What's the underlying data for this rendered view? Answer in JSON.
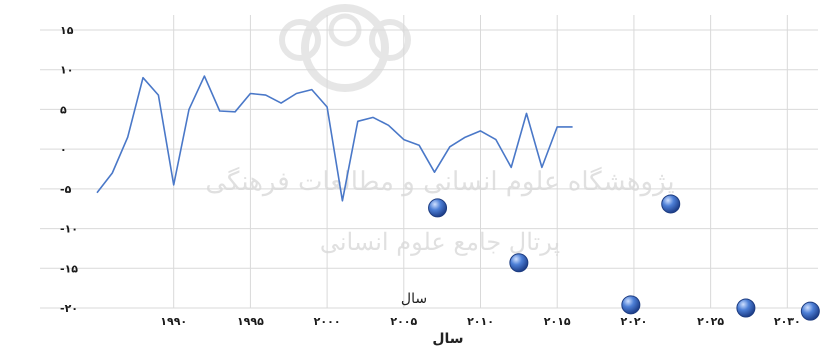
{
  "chart_data": {
    "type": "line",
    "title": "",
    "xlabel": "سال",
    "xlabel_top": "سال",
    "ylabel": "",
    "xlim": [
      1985,
      2032
    ],
    "ylim": [
      -20,
      15
    ],
    "grid": true,
    "y_ticks": [
      {
        "value": 15,
        "label": "۱۵"
      },
      {
        "value": 10,
        "label": "۱۰"
      },
      {
        "value": 5,
        "label": "۵"
      },
      {
        "value": 0,
        "label": "۰"
      },
      {
        "value": -5,
        "label": "-۵"
      },
      {
        "value": -10,
        "label": "-۱۰"
      },
      {
        "value": -15,
        "label": "-۱۵"
      },
      {
        "value": -20,
        "label": "-۲۰"
      }
    ],
    "x_ticks": [
      {
        "value": 1990,
        "label": "۱۹۹۰"
      },
      {
        "value": 1995,
        "label": "۱۹۹۵"
      },
      {
        "value": 2000,
        "label": "۲۰۰۰"
      },
      {
        "value": 2005,
        "label": "۲۰۰۵"
      },
      {
        "value": 2010,
        "label": "۲۰۱۰"
      },
      {
        "value": 2015,
        "label": "۲۰۱۵"
      },
      {
        "value": 2020,
        "label": "۲۰۲۰"
      },
      {
        "value": 2025,
        "label": "۲۰۲۵"
      },
      {
        "value": 2030,
        "label": "۲۰۳۰"
      }
    ],
    "series": [
      {
        "kind": "line",
        "color": "#4a78c8",
        "points": [
          [
            1985.0,
            -5.5
          ],
          [
            1986.0,
            -3.0
          ],
          [
            1987.0,
            1.5
          ],
          [
            1988.0,
            9.0
          ],
          [
            1989.0,
            6.8
          ],
          [
            1990.0,
            -4.5
          ],
          [
            1991.0,
            5.0
          ],
          [
            1992.0,
            9.2
          ],
          [
            1993.0,
            4.8
          ],
          [
            1994.0,
            4.7
          ],
          [
            1995.0,
            7.0
          ],
          [
            1996.0,
            6.8
          ],
          [
            1997.0,
            5.8
          ],
          [
            1998.0,
            7.0
          ],
          [
            1999.0,
            7.5
          ],
          [
            2000.0,
            5.3
          ],
          [
            2001.0,
            -6.5
          ],
          [
            2002.0,
            3.5
          ],
          [
            2003.0,
            4.0
          ],
          [
            2004.0,
            3.0
          ],
          [
            2005.0,
            1.2
          ],
          [
            2006.0,
            0.5
          ],
          [
            2007.0,
            -2.9
          ],
          [
            2008.0,
            0.3
          ],
          [
            2009.0,
            1.5
          ],
          [
            2010.0,
            2.3
          ],
          [
            2011.0,
            1.2
          ],
          [
            2012.0,
            -2.3
          ],
          [
            2013.0,
            4.5
          ],
          [
            2014.0,
            -2.3
          ],
          [
            2015.0,
            2.8
          ],
          [
            2016.0,
            2.8
          ]
        ]
      },
      {
        "kind": "scatter",
        "color": "#2f5fb8",
        "points": [
          [
            2007.2,
            -7.4
          ],
          [
            2012.5,
            -14.3
          ],
          [
            2022.4,
            -6.9
          ],
          [
            2019.8,
            -19.6
          ],
          [
            2027.3,
            -20.0
          ],
          [
            2031.5,
            -20.4
          ]
        ]
      }
    ]
  },
  "watermark": {
    "line1": "پژوهشگاه علوم انسانی و مطالعات فرهنگی",
    "line2": "پرتال جامع علوم انسانی"
  }
}
